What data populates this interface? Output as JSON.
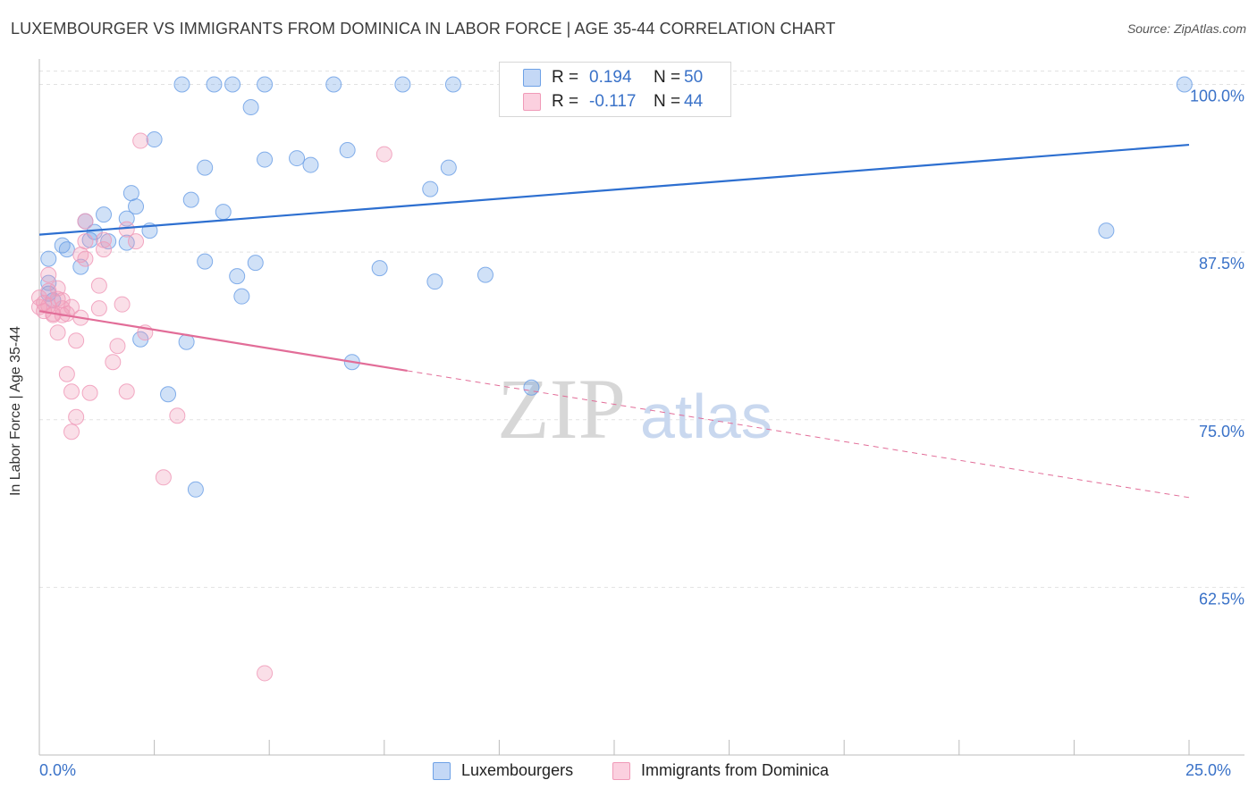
{
  "title": "LUXEMBOURGER VS IMMIGRANTS FROM DOMINICA IN LABOR FORCE | AGE 35-44 CORRELATION CHART",
  "source": "Source: ZipAtlas.com",
  "watermark": {
    "zip": "ZIP",
    "atlas": "atlas"
  },
  "legend": {
    "series1": {
      "r_label": "R =",
      "r_value": "0.194",
      "n_label": "N =",
      "n_value": "50"
    },
    "series2": {
      "r_label": "R =",
      "r_value": "-0.117",
      "n_label": "N =",
      "n_value": "44"
    }
  },
  "bottom_legend": {
    "series1": "Luxembourgers",
    "series2": "Immigrants from Dominica"
  },
  "chart_data": {
    "type": "scatter",
    "title": "LUXEMBOURGER VS IMMIGRANTS FROM DOMINICA IN LABOR FORCE | AGE 35-44 CORRELATION CHART",
    "xlabel": "",
    "ylabel": "In Labor Force | Age 35-44",
    "xlim": [
      0,
      25
    ],
    "ylim": [
      50,
      101.5
    ],
    "x_tick_labels": [
      "0.0%",
      "25.0%"
    ],
    "y_ticks": [
      62.5,
      75.0,
      87.5,
      100.0
    ],
    "y_tick_labels": [
      "62.5%",
      "75.0%",
      "87.5%",
      "100.0%"
    ],
    "grid": true,
    "colors": {
      "series1": "#6ea1e6",
      "series1_line": "#2d6fd0",
      "series2": "#f09ab8",
      "series2_line": "#e26d98",
      "tick_text": "#3a72c8"
    },
    "series": [
      {
        "name": "Luxembourgers",
        "r": 0.194,
        "n": 50,
        "trend": {
          "x": [
            0,
            25
          ],
          "y": [
            88.8,
            95.5
          ],
          "dashed_from": null
        },
        "points": [
          [
            3.1,
            100
          ],
          [
            3.8,
            100
          ],
          [
            4.2,
            100
          ],
          [
            4.9,
            100
          ],
          [
            6.4,
            100
          ],
          [
            7.9,
            100
          ],
          [
            9.0,
            100
          ],
          [
            24.9,
            100
          ],
          [
            4.6,
            98.3
          ],
          [
            2.5,
            95.9
          ],
          [
            3.6,
            93.8
          ],
          [
            4.9,
            94.4
          ],
          [
            5.6,
            94.5
          ],
          [
            5.9,
            94.0
          ],
          [
            6.7,
            95.1
          ],
          [
            8.5,
            92.2
          ],
          [
            8.9,
            93.8
          ],
          [
            2.0,
            91.9
          ],
          [
            2.1,
            90.9
          ],
          [
            3.3,
            91.4
          ],
          [
            4.0,
            90.5
          ],
          [
            1.4,
            90.3
          ],
          [
            1.9,
            90.0
          ],
          [
            1.0,
            89.8
          ],
          [
            2.4,
            89.1
          ],
          [
            1.2,
            89.0
          ],
          [
            1.1,
            88.4
          ],
          [
            1.5,
            88.3
          ],
          [
            0.5,
            88.0
          ],
          [
            0.6,
            87.7
          ],
          [
            0.2,
            87.0
          ],
          [
            3.6,
            86.8
          ],
          [
            4.7,
            86.7
          ],
          [
            0.9,
            86.4
          ],
          [
            7.4,
            86.3
          ],
          [
            4.3,
            85.7
          ],
          [
            4.4,
            84.2
          ],
          [
            8.6,
            85.3
          ],
          [
            9.7,
            85.8
          ],
          [
            0.2,
            85.2
          ],
          [
            0.2,
            84.4
          ],
          [
            2.2,
            81.0
          ],
          [
            3.2,
            80.8
          ],
          [
            6.8,
            79.3
          ],
          [
            2.8,
            76.9
          ],
          [
            10.7,
            77.4
          ],
          [
            3.4,
            69.8
          ],
          [
            23.2,
            89.1
          ],
          [
            1.9,
            88.2
          ],
          [
            0.3,
            83.9
          ]
        ]
      },
      {
        "name": "Immigrants from Dominica",
        "r": -0.117,
        "n": 44,
        "trend": {
          "x": [
            0,
            25
          ],
          "y": [
            83.1,
            69.2
          ],
          "dashed_from": 8.0
        },
        "points": [
          [
            2.2,
            95.8
          ],
          [
            7.5,
            94.8
          ],
          [
            1.9,
            89.2
          ],
          [
            1.0,
            89.8
          ],
          [
            2.1,
            88.3
          ],
          [
            1.0,
            88.3
          ],
          [
            1.4,
            88.4
          ],
          [
            1.4,
            87.7
          ],
          [
            0.9,
            87.3
          ],
          [
            1.0,
            87.0
          ],
          [
            0.2,
            85.8
          ],
          [
            1.3,
            85.0
          ],
          [
            0.4,
            84.8
          ],
          [
            0.2,
            84.6
          ],
          [
            0.4,
            84.0
          ],
          [
            0.5,
            83.9
          ],
          [
            0.1,
            83.7
          ],
          [
            0.2,
            83.5
          ],
          [
            0.0,
            83.4
          ],
          [
            0.7,
            83.4
          ],
          [
            1.3,
            83.3
          ],
          [
            0.3,
            82.8
          ],
          [
            0.5,
            82.8
          ],
          [
            0.9,
            82.6
          ],
          [
            0.4,
            81.5
          ],
          [
            0.8,
            80.9
          ],
          [
            2.3,
            81.5
          ],
          [
            1.7,
            80.5
          ],
          [
            0.6,
            78.4
          ],
          [
            1.6,
            79.3
          ],
          [
            0.7,
            77.1
          ],
          [
            1.1,
            77.0
          ],
          [
            1.9,
            77.1
          ],
          [
            0.8,
            75.2
          ],
          [
            3.0,
            75.3
          ],
          [
            0.7,
            74.1
          ],
          [
            2.7,
            70.7
          ],
          [
            4.9,
            56.1
          ],
          [
            1.8,
            83.6
          ],
          [
            0.0,
            84.1
          ],
          [
            0.1,
            83.1
          ],
          [
            0.3,
            82.9
          ],
          [
            0.5,
            83.3
          ],
          [
            0.6,
            82.9
          ]
        ]
      }
    ]
  }
}
